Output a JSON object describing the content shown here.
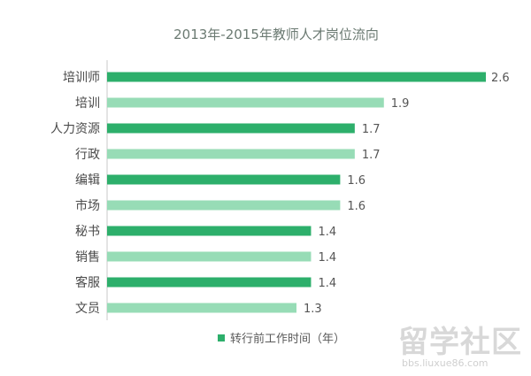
{
  "colors": {
    "dark": "#2daf6b",
    "light": "#97dcb6",
    "lastLabel": "#ffffff"
  },
  "chart_data": {
    "type": "bar",
    "orientation": "horizontal",
    "title": "2013年-2015年教师人才岗位流向",
    "categories": [
      "培训师",
      "培训",
      "人力资源",
      "行政",
      "编辑",
      "市场",
      "秘书",
      "销售",
      "客服",
      "文员"
    ],
    "values": [
      2.6,
      1.9,
      1.7,
      1.7,
      1.6,
      1.6,
      1.4,
      1.4,
      1.4,
      1.3
    ],
    "series_name": "转行前工作时间（年）",
    "xlim": [
      0,
      2.6
    ],
    "grid": false,
    "legend_position": "bottom"
  },
  "watermark": {
    "text": "留学社区",
    "url": "bbs.liuxue86.com"
  }
}
